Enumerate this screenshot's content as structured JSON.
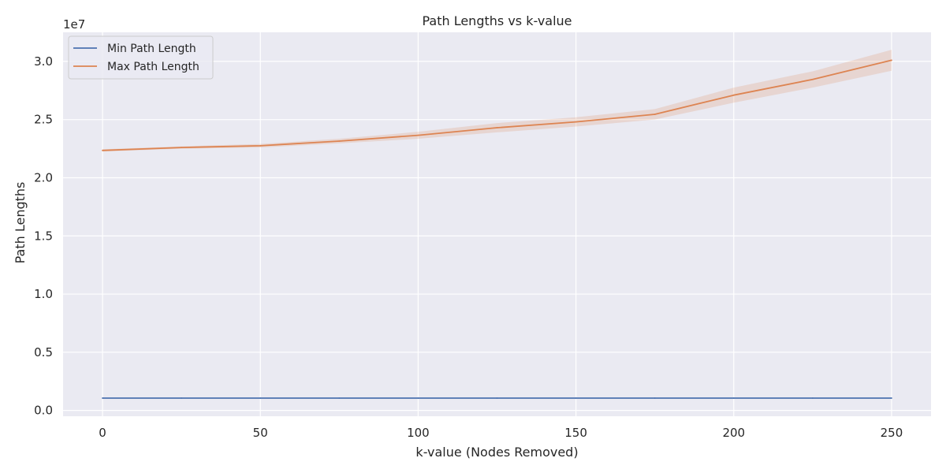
{
  "chart_data": {
    "type": "line",
    "title": "Path Lengths vs k-value",
    "xlabel": "k-value (Nodes Removed)",
    "ylabel": "Path Lengths",
    "y_offset_label": "1e7",
    "xlim": [
      -12.5,
      262.5
    ],
    "ylim": [
      -0.05,
      3.25
    ],
    "x_ticks": [
      0,
      50,
      100,
      150,
      200,
      250
    ],
    "y_ticks": [
      0.0,
      0.5,
      1.0,
      1.5,
      2.0,
      2.5,
      3.0
    ],
    "y_tick_labels": [
      "0.0",
      "0.5",
      "1.0",
      "1.5",
      "2.0",
      "2.5",
      "3.0"
    ],
    "grid": true,
    "legend_position": "top-left",
    "x": [
      0,
      25,
      50,
      75,
      100,
      125,
      150,
      175,
      200,
      225,
      250
    ],
    "series": [
      {
        "name": "Min Path Length",
        "color": "#4c72b0",
        "values": [
          0.106,
          0.106,
          0.106,
          0.106,
          0.106,
          0.106,
          0.106,
          0.106,
          0.106,
          0.106,
          0.106
        ],
        "ci_low": [
          0.106,
          0.106,
          0.106,
          0.106,
          0.106,
          0.106,
          0.106,
          0.106,
          0.106,
          0.106,
          0.106
        ],
        "ci_high": [
          0.106,
          0.106,
          0.106,
          0.106,
          0.106,
          0.106,
          0.106,
          0.106,
          0.106,
          0.106,
          0.106
        ]
      },
      {
        "name": "Max Path Length",
        "color": "#dd8452",
        "values": [
          2.235,
          2.26,
          2.275,
          2.315,
          2.365,
          2.43,
          2.48,
          2.545,
          2.71,
          2.845,
          3.01
        ],
        "ci_low": [
          2.225,
          2.25,
          2.26,
          2.295,
          2.335,
          2.39,
          2.44,
          2.5,
          2.645,
          2.775,
          2.92
        ],
        "ci_high": [
          2.245,
          2.27,
          2.29,
          2.335,
          2.395,
          2.47,
          2.52,
          2.59,
          2.775,
          2.915,
          3.1
        ]
      }
    ]
  }
}
